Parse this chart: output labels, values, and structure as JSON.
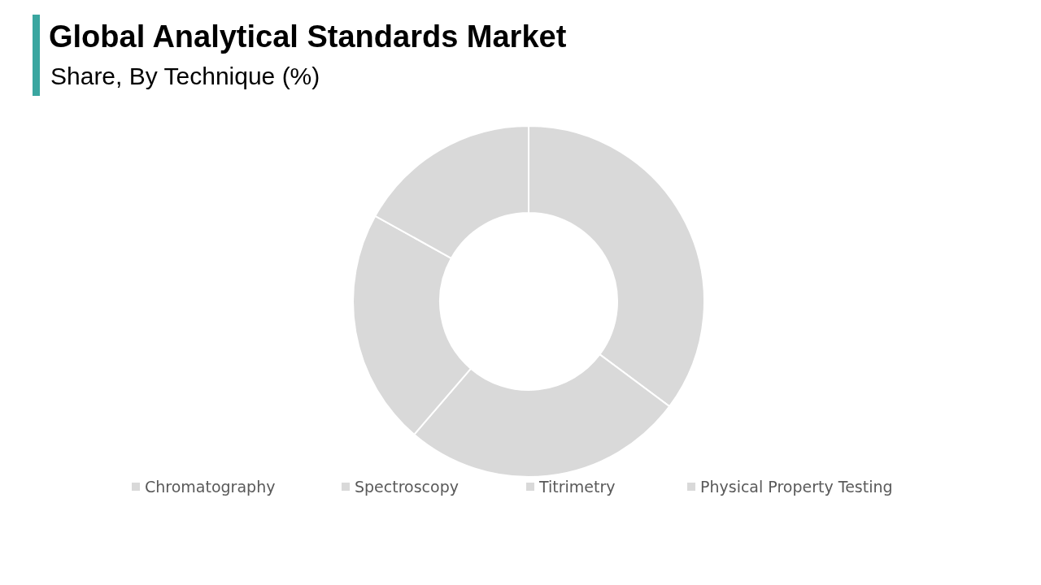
{
  "chart_data": {
    "type": "donut",
    "title": "Global Analytical Standards Market",
    "subtitle": "Share, By Technique (%)",
    "categories": [
      "Chromatography",
      "Spectroscopy",
      "Titrimetry",
      "Physical Property Testing"
    ],
    "values": [
      35.2,
      26.1,
      21.8,
      16.9
    ],
    "colors": [
      "#d9d9d9",
      "#d9d9d9",
      "#d9d9d9",
      "#d9d9d9"
    ],
    "legend": "bottom"
  }
}
